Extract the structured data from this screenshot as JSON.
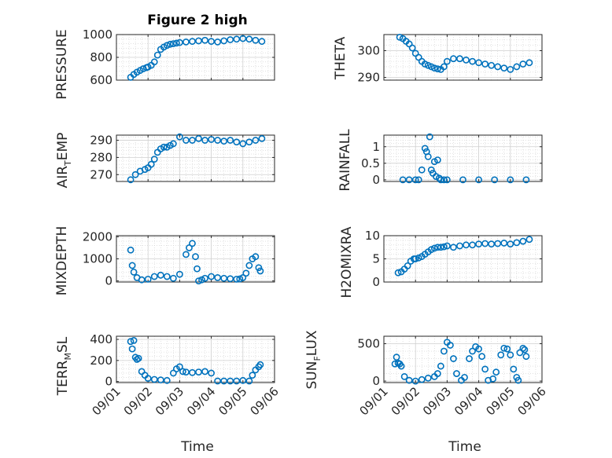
{
  "figure": {
    "title": "Figure 2 high"
  },
  "colors": {
    "marker": "#0072BD",
    "axis": "#262626",
    "grid": "#cfcfcf"
  },
  "x_ticks": [
    "09/01",
    "09/02",
    "09/03",
    "09/04",
    "09/05",
    "09/06"
  ],
  "labels": {
    "pressure_ylabel": "PRESSURE",
    "theta_ylabel": "THETA",
    "airtemp_main": "AIR",
    "airtemp_sub": "T",
    "airtemp_tail": "EMP",
    "rainfall_ylabel": "RAINFALL",
    "mixdepth_ylabel": "MIXDEPTH",
    "h2omixra_ylabel": "H2OMIXRA",
    "terrmsl_main": "TERR",
    "terrmsl_sub": "M",
    "terrmsl_tail": "SL",
    "sunflux_main": "SUN",
    "sunflux_sub": "F",
    "sunflux_tail": "LUX",
    "time_left": "Time",
    "time_right": "Time"
  },
  "chart_data": [
    {
      "id": "pressure",
      "type": "scatter",
      "title": "Figure 2 high",
      "ylabel": "PRESSURE",
      "xlabel": "",
      "xlim": [
        0,
        5
      ],
      "ylim": [
        600,
        1000
      ],
      "yticks": [
        "600",
        "800",
        "1000"
      ],
      "grid": true,
      "x": [
        0.45,
        0.55,
        0.65,
        0.75,
        0.85,
        0.95,
        1.0,
        1.1,
        1.2,
        1.3,
        1.4,
        1.5,
        1.6,
        1.7,
        1.8,
        1.9,
        2.0,
        2.2,
        2.4,
        2.6,
        2.8,
        3.0,
        3.2,
        3.4,
        3.6,
        3.8,
        4.0,
        4.2,
        4.4,
        4.6
      ],
      "y": [
        625,
        650,
        670,
        685,
        700,
        710,
        715,
        730,
        760,
        820,
        870,
        890,
        905,
        915,
        920,
        925,
        930,
        935,
        940,
        945,
        950,
        940,
        935,
        945,
        955,
        960,
        965,
        960,
        950,
        940
      ]
    },
    {
      "id": "theta",
      "type": "scatter",
      "ylabel": "THETA",
      "xlabel": "",
      "xlim": [
        0,
        5
      ],
      "ylim": [
        289,
        306
      ],
      "yticks": [
        "290",
        "300"
      ],
      "grid": true,
      "x": [
        0.5,
        0.6,
        0.7,
        0.8,
        0.9,
        1.0,
        1.1,
        1.2,
        1.3,
        1.4,
        1.5,
        1.6,
        1.7,
        1.8,
        1.9,
        2.0,
        2.2,
        2.4,
        2.6,
        2.8,
        3.0,
        3.2,
        3.4,
        3.6,
        3.8,
        4.0,
        4.2,
        4.4,
        4.6
      ],
      "y": [
        305,
        304.5,
        303.5,
        302.5,
        301,
        299,
        297.5,
        296,
        295,
        294.5,
        294,
        293.5,
        293.2,
        293,
        294,
        296,
        297,
        297,
        296.5,
        296,
        295.5,
        295,
        294.5,
        294,
        293.5,
        293,
        294,
        295,
        295.5
      ]
    },
    {
      "id": "air_temp",
      "type": "scatter",
      "ylabel": "AIR_TEMP",
      "xlabel": "",
      "xlim": [
        0,
        5
      ],
      "ylim": [
        266,
        293
      ],
      "yticks": [
        "270",
        "280",
        "290"
      ],
      "grid": true,
      "x": [
        0.45,
        0.6,
        0.75,
        0.9,
        1.0,
        1.1,
        1.2,
        1.3,
        1.4,
        1.5,
        1.6,
        1.7,
        1.8,
        2.0,
        2.2,
        2.4,
        2.6,
        2.8,
        3.0,
        3.2,
        3.4,
        3.6,
        3.8,
        4.0,
        4.2,
        4.4,
        4.6
      ],
      "y": [
        267,
        270,
        272,
        273,
        274,
        276,
        279,
        283,
        285,
        286,
        286,
        287,
        288,
        292,
        290,
        290,
        291,
        290,
        290.5,
        290,
        289.5,
        290,
        289,
        288,
        289,
        290,
        291
      ]
    },
    {
      "id": "rainfall",
      "type": "scatter",
      "ylabel": "RAINFALL",
      "xlabel": "",
      "xlim": [
        0,
        5
      ],
      "ylim": [
        -0.05,
        1.35
      ],
      "yticks": [
        "0",
        "0.5",
        "1"
      ],
      "grid": true,
      "x": [
        0.6,
        0.8,
        1.0,
        1.1,
        1.2,
        1.3,
        1.35,
        1.4,
        1.45,
        1.5,
        1.55,
        1.6,
        1.65,
        1.7,
        1.75,
        1.8,
        1.9,
        2.0,
        2.5,
        3.0,
        3.5,
        4.0,
        4.5
      ],
      "y": [
        0,
        0,
        0,
        0,
        0.3,
        0.95,
        0.85,
        0.7,
        1.3,
        0.3,
        0.2,
        0.55,
        0.1,
        0.6,
        0.05,
        0,
        0,
        0,
        0,
        0,
        0,
        0,
        0
      ]
    },
    {
      "id": "mixdepth",
      "type": "scatter",
      "ylabel": "MIXDEPTH",
      "xlabel": "",
      "xlim": [
        0,
        5
      ],
      "ylim": [
        -50,
        2050
      ],
      "yticks": [
        "0",
        "1000",
        "2000"
      ],
      "grid": true,
      "x": [
        0.45,
        0.5,
        0.55,
        0.65,
        0.8,
        1.0,
        1.2,
        1.4,
        1.6,
        1.8,
        2.0,
        2.2,
        2.3,
        2.4,
        2.5,
        2.55,
        2.6,
        2.7,
        2.8,
        3.0,
        3.2,
        3.4,
        3.6,
        3.8,
        3.9,
        4.0,
        4.1,
        4.2,
        4.3,
        4.4,
        4.5,
        4.55
      ],
      "y": [
        1400,
        700,
        400,
        150,
        50,
        80,
        200,
        260,
        200,
        120,
        300,
        1200,
        1500,
        1700,
        1100,
        550,
        0,
        50,
        120,
        200,
        150,
        120,
        100,
        80,
        90,
        150,
        350,
        700,
        1000,
        1100,
        600,
        450
      ]
    },
    {
      "id": "h2omixra",
      "type": "scatter",
      "ylabel": "H2OMIXRA",
      "xlabel": "",
      "xlim": [
        0,
        5
      ],
      "ylim": [
        0,
        10
      ],
      "yticks": [
        "0",
        "5",
        "10"
      ],
      "grid": true,
      "x": [
        0.45,
        0.55,
        0.65,
        0.75,
        0.85,
        0.95,
        1.0,
        1.1,
        1.2,
        1.3,
        1.4,
        1.5,
        1.6,
        1.7,
        1.8,
        1.9,
        2.0,
        2.2,
        2.4,
        2.6,
        2.8,
        3.0,
        3.2,
        3.4,
        3.6,
        3.8,
        4.0,
        4.2,
        4.4,
        4.6
      ],
      "y": [
        2,
        2.2,
        2.8,
        3.5,
        4.5,
        5,
        5,
        5.2,
        5.5,
        6,
        6.5,
        7,
        7.3,
        7.5,
        7.5,
        7.6,
        7.8,
        7.5,
        7.8,
        8,
        8,
        8.2,
        8.3,
        8.2,
        8.3,
        8.4,
        8.2,
        8.5,
        8.8,
        9.2
      ]
    },
    {
      "id": "terr_msl",
      "type": "scatter",
      "ylabel": "TERR_MSL",
      "xlabel": "Time",
      "xlim": [
        0,
        5
      ],
      "ylim": [
        -10,
        430
      ],
      "yticks": [
        "0",
        "200",
        "400"
      ],
      "grid": true,
      "x": [
        0.45,
        0.5,
        0.55,
        0.6,
        0.65,
        0.7,
        0.8,
        0.9,
        1.0,
        1.2,
        1.4,
        1.6,
        1.8,
        1.9,
        2.0,
        2.1,
        2.2,
        2.4,
        2.6,
        2.8,
        3.0,
        3.2,
        3.4,
        3.6,
        3.8,
        4.0,
        4.2,
        4.3,
        4.4,
        4.5,
        4.55
      ],
      "y": [
        380,
        310,
        390,
        230,
        210,
        220,
        95,
        60,
        30,
        20,
        15,
        10,
        80,
        120,
        140,
        95,
        90,
        85,
        90,
        95,
        80,
        5,
        5,
        5,
        5,
        10,
        5,
        60,
        110,
        140,
        160
      ]
    },
    {
      "id": "sun_flux",
      "type": "scatter",
      "ylabel": "SUN_FLUX",
      "xlabel": "Time",
      "xlim": [
        0,
        5
      ],
      "ylim": [
        -20,
        600
      ],
      "yticks": [
        "0",
        "500"
      ],
      "grid": true,
      "x": [
        0.35,
        0.4,
        0.45,
        0.5,
        0.55,
        0.65,
        0.8,
        1.0,
        1.2,
        1.4,
        1.6,
        1.7,
        1.8,
        1.9,
        2.0,
        2.1,
        2.2,
        2.3,
        2.45,
        2.55,
        2.7,
        2.8,
        2.9,
        3.0,
        3.1,
        3.2,
        3.3,
        3.45,
        3.55,
        3.7,
        3.8,
        3.9,
        4.0,
        4.1,
        4.2,
        4.25,
        4.3,
        4.4,
        4.45,
        4.5
      ],
      "y": [
        230,
        320,
        240,
        230,
        200,
        60,
        10,
        0,
        20,
        40,
        60,
        100,
        200,
        400,
        520,
        480,
        300,
        100,
        10,
        50,
        300,
        400,
        460,
        430,
        330,
        160,
        10,
        30,
        120,
        350,
        440,
        430,
        350,
        160,
        50,
        10,
        380,
        440,
        420,
        330
      ]
    }
  ]
}
